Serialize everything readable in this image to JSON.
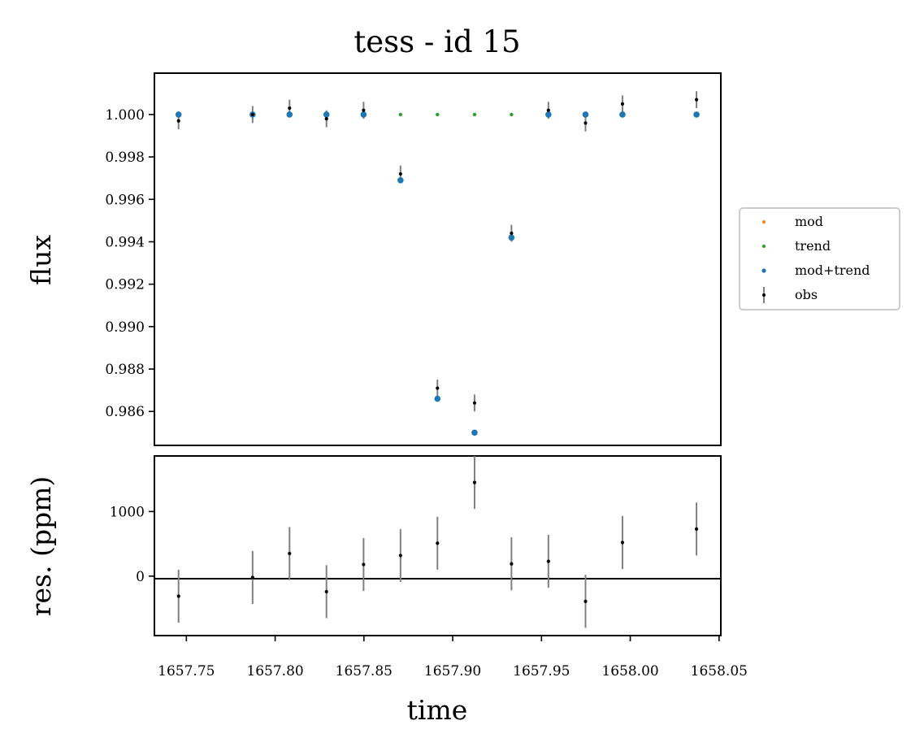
{
  "title": "tess - id 15",
  "colors": {
    "mod": "#ff7f0e",
    "trend": "#2ca02c",
    "mod_trend": "#1f77b4",
    "obs": "#000000",
    "errorbar": "#808080"
  },
  "chart_data": [
    {
      "type": "scatter",
      "panel": "flux",
      "title": "tess - id 15",
      "xlabel": "",
      "ylabel": "flux",
      "xlim": [
        1657.732,
        1658.051
      ],
      "ylim": [
        0.9844,
        1.00195
      ],
      "yticks": [
        "0.986",
        "0.988",
        "0.990",
        "0.992",
        "0.994",
        "0.996",
        "0.998",
        "1.000"
      ],
      "legend": {
        "placement": "right",
        "entries": [
          "mod",
          "trend",
          "mod+trend",
          "obs"
        ]
      },
      "grid": false,
      "x": [
        1657.7456,
        1657.7873,
        1657.8081,
        1657.8289,
        1657.8498,
        1657.8706,
        1657.8914,
        1657.9123,
        1657.9331,
        1657.9539,
        1657.9748,
        1657.9956,
        1658.0373
      ],
      "series": [
        {
          "name": "trend",
          "values": [
            null,
            null,
            null,
            null,
            null,
            1.0,
            1.0,
            1.0,
            1.0,
            null,
            null,
            null,
            null
          ]
        },
        {
          "name": "mod+trend",
          "values": [
            1.0,
            1.0,
            1.0,
            1.0,
            1.0,
            0.9969,
            0.9866,
            0.985,
            0.9942,
            1.0,
            1.0,
            1.0,
            1.0
          ]
        },
        {
          "name": "obs",
          "values": [
            0.9997,
            1.0,
            1.0003,
            0.9998,
            1.0002,
            0.9972,
            0.9871,
            0.9864,
            0.9944,
            1.0002,
            0.9996,
            1.0005,
            1.0007
          ],
          "yerr": 0.0004
        }
      ]
    },
    {
      "type": "scatter",
      "panel": "residuals",
      "xlabel": "time",
      "ylabel": "res. (ppm)",
      "xlim": [
        1657.732,
        1658.051
      ],
      "ylim": [
        -920,
        1860
      ],
      "xticks": [
        "1657.75",
        "1657.80",
        "1657.85",
        "1657.90",
        "1657.95",
        "1658.00",
        "1658.05"
      ],
      "yticks": [
        "0",
        "1000"
      ],
      "grid": false,
      "x": [
        1657.7456,
        1657.7873,
        1657.8081,
        1657.8289,
        1657.8498,
        1657.8706,
        1657.8914,
        1657.9123,
        1657.9331,
        1657.9539,
        1657.9748,
        1657.9956,
        1658.0373
      ],
      "series": [
        {
          "name": "res",
          "values": [
            -310,
            -20,
            350,
            -240,
            180,
            320,
            510,
            1450,
            190,
            230,
            -390,
            520,
            730
          ],
          "yerr": 410
        }
      ]
    }
  ]
}
